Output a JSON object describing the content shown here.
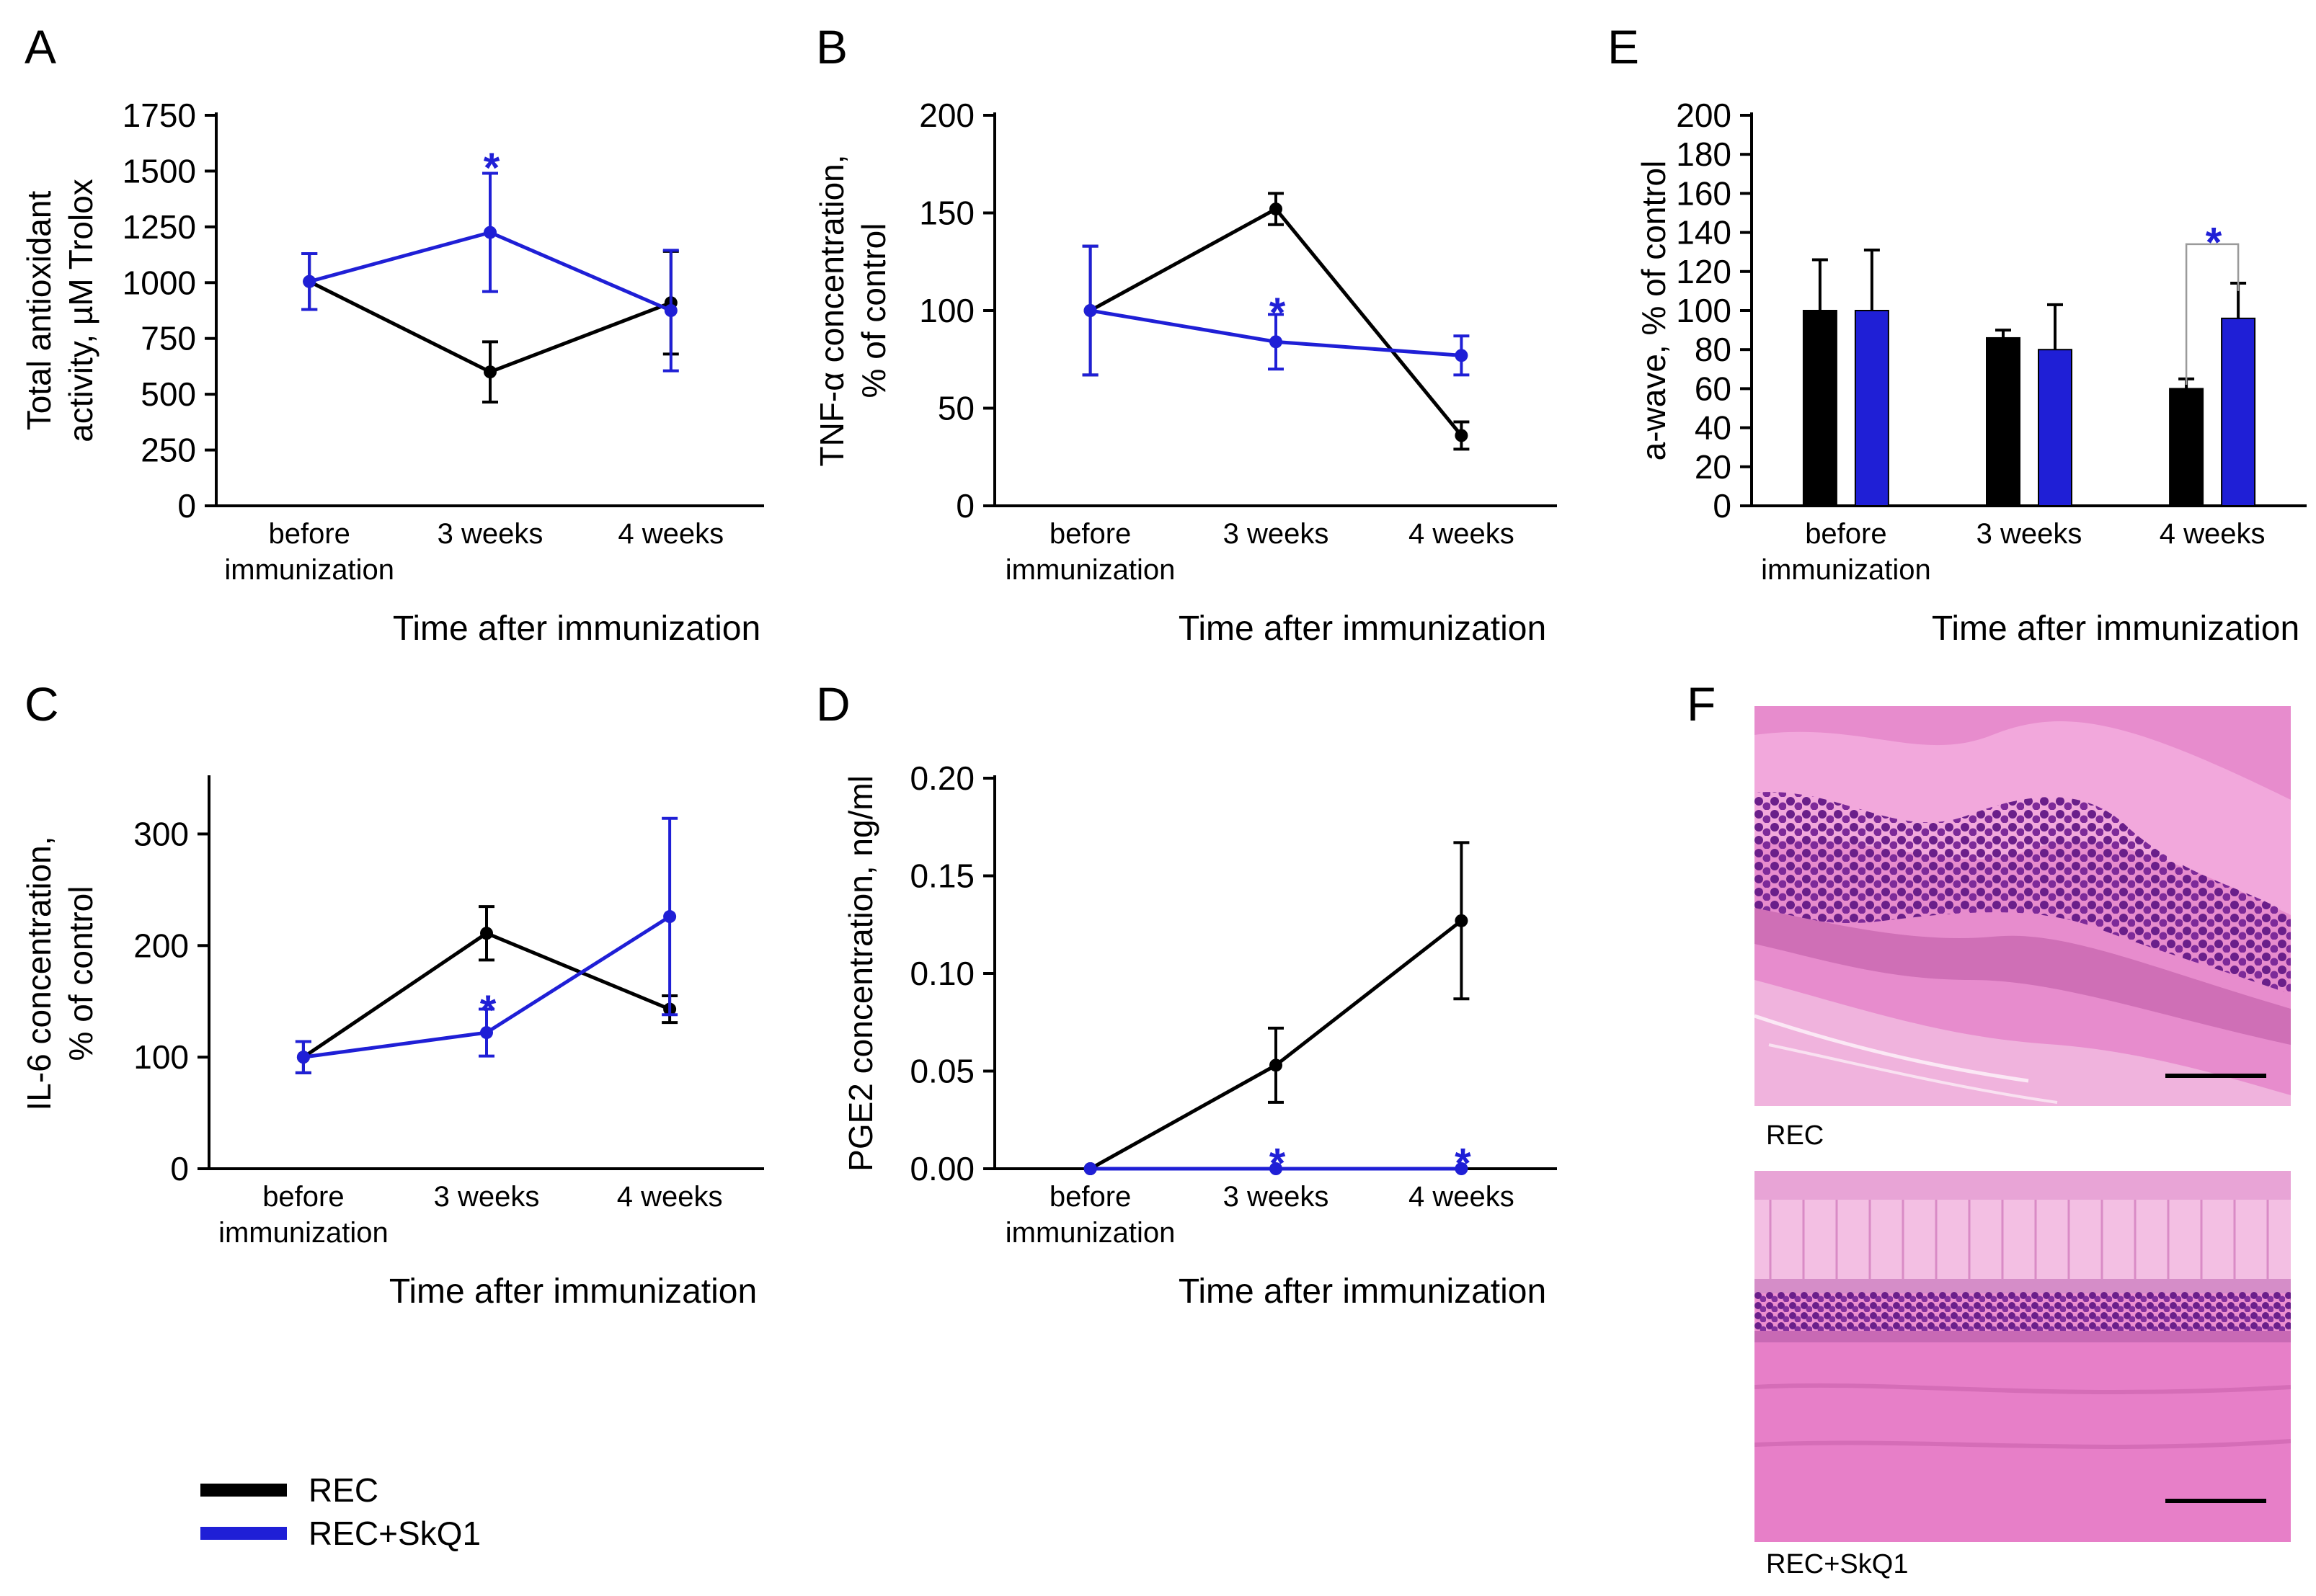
{
  "colors": {
    "rec": "#000000",
    "rec_skq1": "#1f1fd6",
    "tissue_pink": "#e77fc8",
    "nuclei": "#8a2a9c"
  },
  "x_title": "Time after immunization",
  "chart_data": [
    {
      "panel": "A",
      "type": "line",
      "categories": [
        "before immunization",
        "3 weeks",
        "4 weeks"
      ],
      "ylabel_line1": "Total antioxidant",
      "ylabel_line2": "activity, µM Trolox",
      "ylim": [
        0,
        1750
      ],
      "yticks": [
        0,
        250,
        500,
        750,
        1000,
        1250,
        1500,
        1750
      ],
      "ytick_decimals": 0,
      "series": [
        {
          "name": "REC",
          "values": [
            1005,
            600,
            910
          ],
          "errors": [
            125,
            135,
            230
          ]
        },
        {
          "name": "REC+SkQ1",
          "values": [
            1005,
            1225,
            875
          ],
          "errors": [
            125,
            265,
            270
          ]
        }
      ],
      "annotations": [
        {
          "text": "*",
          "category": 1,
          "y": 1560,
          "series": 1
        }
      ]
    },
    {
      "panel": "B",
      "type": "line",
      "categories": [
        "before immunization",
        "3 weeks",
        "4 weeks"
      ],
      "ylabel_line1": "TNF-α concentration,",
      "ylabel_line2": "% of control",
      "ylim": [
        0,
        200
      ],
      "yticks": [
        0,
        50,
        100,
        150,
        200
      ],
      "ytick_decimals": 0,
      "series": [
        {
          "name": "REC",
          "values": [
            100,
            152,
            36
          ],
          "errors": [
            33,
            8,
            7
          ]
        },
        {
          "name": "REC+SkQ1",
          "values": [
            100,
            84,
            77
          ],
          "errors": [
            33,
            14,
            10
          ]
        }
      ],
      "annotations": [
        {
          "text": "*",
          "category": 1,
          "y": 104,
          "series": 1
        }
      ]
    },
    {
      "panel": "C",
      "type": "line",
      "categories": [
        "before immunization",
        "3 weeks",
        "4 weeks"
      ],
      "ylabel_line1": "IL-6 concentration,",
      "ylabel_line2": "% of control",
      "ylim": [
        0,
        350
      ],
      "yticks": [
        0,
        100,
        200,
        300
      ],
      "ytick_decimals": 0,
      "series": [
        {
          "name": "REC",
          "values": [
            100,
            211,
            143
          ],
          "errors": [
            14,
            24,
            12
          ]
        },
        {
          "name": "REC+SkQ1",
          "values": [
            100,
            122,
            226
          ],
          "errors": [
            14,
            21,
            88
          ]
        }
      ],
      "annotations": [
        {
          "text": "*",
          "category": 1,
          "y": 151,
          "series": 1
        }
      ]
    },
    {
      "panel": "D",
      "type": "line",
      "categories": [
        "before immunization",
        "3 weeks",
        "4 weeks"
      ],
      "ylabel_line1": "PGE2 concentration, ng/ml",
      "ylabel_line2": "",
      "ylim": [
        0,
        0.2
      ],
      "yticks": [
        0,
        0.05,
        0.1,
        0.15,
        0.2
      ],
      "ytick_decimals": 2,
      "series": [
        {
          "name": "REC",
          "values": [
            0,
            0.053,
            0.127
          ],
          "errors": [
            0,
            0.019,
            0.04
          ]
        },
        {
          "name": "REC+SkQ1",
          "values": [
            0,
            0,
            0
          ],
          "errors": [
            0,
            0,
            0
          ]
        }
      ],
      "annotations": [
        {
          "text": "*",
          "category": 1,
          "y": 0.008,
          "series": 1
        },
        {
          "text": "*",
          "category": 2,
          "y": 0.008,
          "series": 1
        }
      ]
    },
    {
      "panel": "E",
      "type": "bar",
      "categories": [
        "before immunization",
        "3 weeks",
        "4 weeks"
      ],
      "ylabel_line1": "a-wave, % of control",
      "ylabel_line2": "",
      "ylim": [
        0,
        200
      ],
      "yticks": [
        0,
        20,
        40,
        60,
        80,
        100,
        120,
        140,
        160,
        180,
        200
      ],
      "ytick_decimals": 0,
      "series": [
        {
          "name": "REC",
          "values": [
            100,
            86,
            60
          ],
          "errors": [
            26,
            4,
            5
          ]
        },
        {
          "name": "REC+SkQ1",
          "values": [
            100,
            80,
            96
          ],
          "errors": [
            31,
            23,
            18
          ]
        }
      ],
      "annotations": [
        {
          "text": "*",
          "category": 2,
          "y": 140,
          "bracket": true
        }
      ]
    }
  ],
  "panel_letters": {
    "A": "A",
    "B": "B",
    "C": "C",
    "D": "D",
    "E": "E",
    "F": "F"
  },
  "legend": [
    {
      "label": "REC"
    },
    {
      "label": "REC+SkQ1"
    }
  ],
  "histology": {
    "top_caption": "REC",
    "bottom_caption": "REC+SkQ1"
  }
}
